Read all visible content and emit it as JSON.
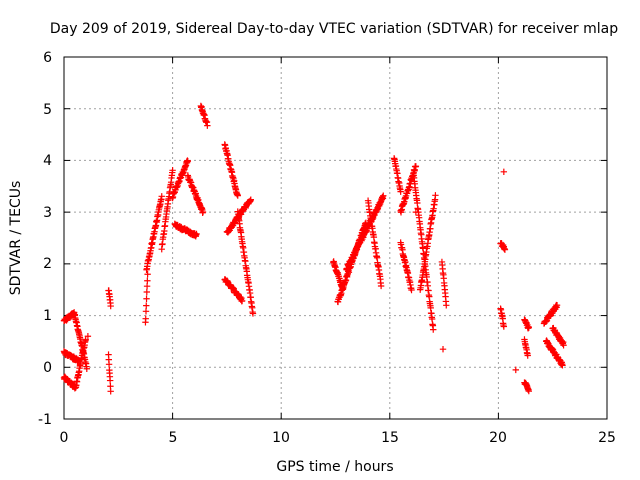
{
  "chart_data": {
    "type": "scatter",
    "title": "Day 209 of 2019, Sidereal Day-to-day VTEC variation (SDTVAR) for receiver mlap",
    "xlabel": "GPS time / hours",
    "ylabel": "SDTVAR / TECUs",
    "xlim": [
      0,
      25
    ],
    "ylim": [
      -1,
      6
    ],
    "xticks": [
      "0",
      "5",
      "10",
      "15",
      "20",
      "25"
    ],
    "yticks": [
      "-1",
      "0",
      "1",
      "2",
      "3",
      "4",
      "5",
      "6"
    ],
    "grid": true,
    "marker": "+",
    "color": "#ff0000",
    "series": [
      {
        "name": "SDTVAR",
        "segments": [
          {
            "t0": 0.0,
            "t1": 0.5,
            "y0": 0.9,
            "y1": 1.05
          },
          {
            "t0": 0.5,
            "t1": 1.05,
            "y0": 1.0,
            "y1": 0.0
          },
          {
            "t0": 0.0,
            "t1": 0.7,
            "y0": 0.28,
            "y1": 0.12
          },
          {
            "t0": 0.0,
            "t1": 0.55,
            "y0": -0.2,
            "y1": -0.4
          },
          {
            "t0": 0.55,
            "t1": 1.0,
            "y0": -0.35,
            "y1": 0.55
          },
          {
            "t0": 2.05,
            "t1": 2.15,
            "y0": 1.5,
            "y1": 1.2
          },
          {
            "t0": 2.05,
            "t1": 2.15,
            "y0": 0.22,
            "y1": -0.45
          },
          {
            "t0": 3.75,
            "t1": 3.85,
            "y0": 0.85,
            "y1": 1.8
          },
          {
            "t0": 3.8,
            "t1": 4.5,
            "y0": 1.9,
            "y1": 3.3
          },
          {
            "t0": 4.5,
            "t1": 5.0,
            "y0": 2.3,
            "y1": 3.8
          },
          {
            "t0": 5.0,
            "t1": 5.7,
            "y0": 3.3,
            "y1": 4.0
          },
          {
            "t0": 5.1,
            "t1": 6.1,
            "y0": 2.75,
            "y1": 2.55
          },
          {
            "t0": 5.7,
            "t1": 6.4,
            "y0": 3.7,
            "y1": 3.0
          },
          {
            "t0": 6.3,
            "t1": 6.6,
            "y0": 5.05,
            "y1": 4.7
          },
          {
            "t0": 7.4,
            "t1": 8.0,
            "y0": 4.3,
            "y1": 3.3
          },
          {
            "t0": 7.4,
            "t1": 8.2,
            "y0": 1.7,
            "y1": 1.3
          },
          {
            "t0": 7.5,
            "t1": 8.6,
            "y0": 2.6,
            "y1": 3.25
          },
          {
            "t0": 8.0,
            "t1": 8.7,
            "y0": 3.0,
            "y1": 1.05
          },
          {
            "t0": 12.4,
            "t1": 12.8,
            "y0": 2.05,
            "y1": 1.55
          },
          {
            "t0": 12.6,
            "t1": 13.9,
            "y0": 1.25,
            "y1": 2.8
          },
          {
            "t0": 13.0,
            "t1": 14.7,
            "y0": 1.9,
            "y1": 3.3
          },
          {
            "t0": 14.0,
            "t1": 14.6,
            "y0": 3.2,
            "y1": 1.6
          },
          {
            "t0": 15.2,
            "t1": 15.5,
            "y0": 4.05,
            "y1": 3.4
          },
          {
            "t0": 15.5,
            "t1": 16.2,
            "y0": 3.0,
            "y1": 3.9
          },
          {
            "t0": 15.5,
            "t1": 16.0,
            "y0": 2.4,
            "y1": 1.5
          },
          {
            "t0": 16.1,
            "t1": 17.0,
            "y0": 3.7,
            "y1": 0.75
          },
          {
            "t0": 16.4,
            "t1": 17.1,
            "y0": 1.5,
            "y1": 3.3
          },
          {
            "t0": 17.4,
            "t1": 17.6,
            "y0": 2.05,
            "y1": 1.2
          },
          {
            "t0": 20.1,
            "t1": 20.3,
            "y0": 2.4,
            "y1": 2.3
          },
          {
            "t0": 20.1,
            "t1": 20.25,
            "y0": 1.15,
            "y1": 0.8
          },
          {
            "t0": 21.2,
            "t1": 21.4,
            "y0": 0.95,
            "y1": 0.75
          },
          {
            "t0": 21.2,
            "t1": 21.35,
            "y0": 0.55,
            "y1": 0.2
          },
          {
            "t0": 21.2,
            "t1": 21.4,
            "y0": -0.28,
            "y1": -0.45
          },
          {
            "t0": 22.1,
            "t1": 22.7,
            "y0": 0.85,
            "y1": 1.2
          },
          {
            "t0": 22.2,
            "t1": 22.95,
            "y0": 0.5,
            "y1": 0.05
          },
          {
            "t0": 22.5,
            "t1": 23.0,
            "y0": 0.75,
            "y1": 0.45
          }
        ],
        "isolated_points": [
          {
            "x": 1.1,
            "y": 0.6
          },
          {
            "x": 16.2,
            "y": 3.0
          },
          {
            "x": 17.45,
            "y": 0.35
          },
          {
            "x": 20.25,
            "y": 3.78
          },
          {
            "x": 20.8,
            "y": -0.05
          }
        ]
      }
    ]
  }
}
